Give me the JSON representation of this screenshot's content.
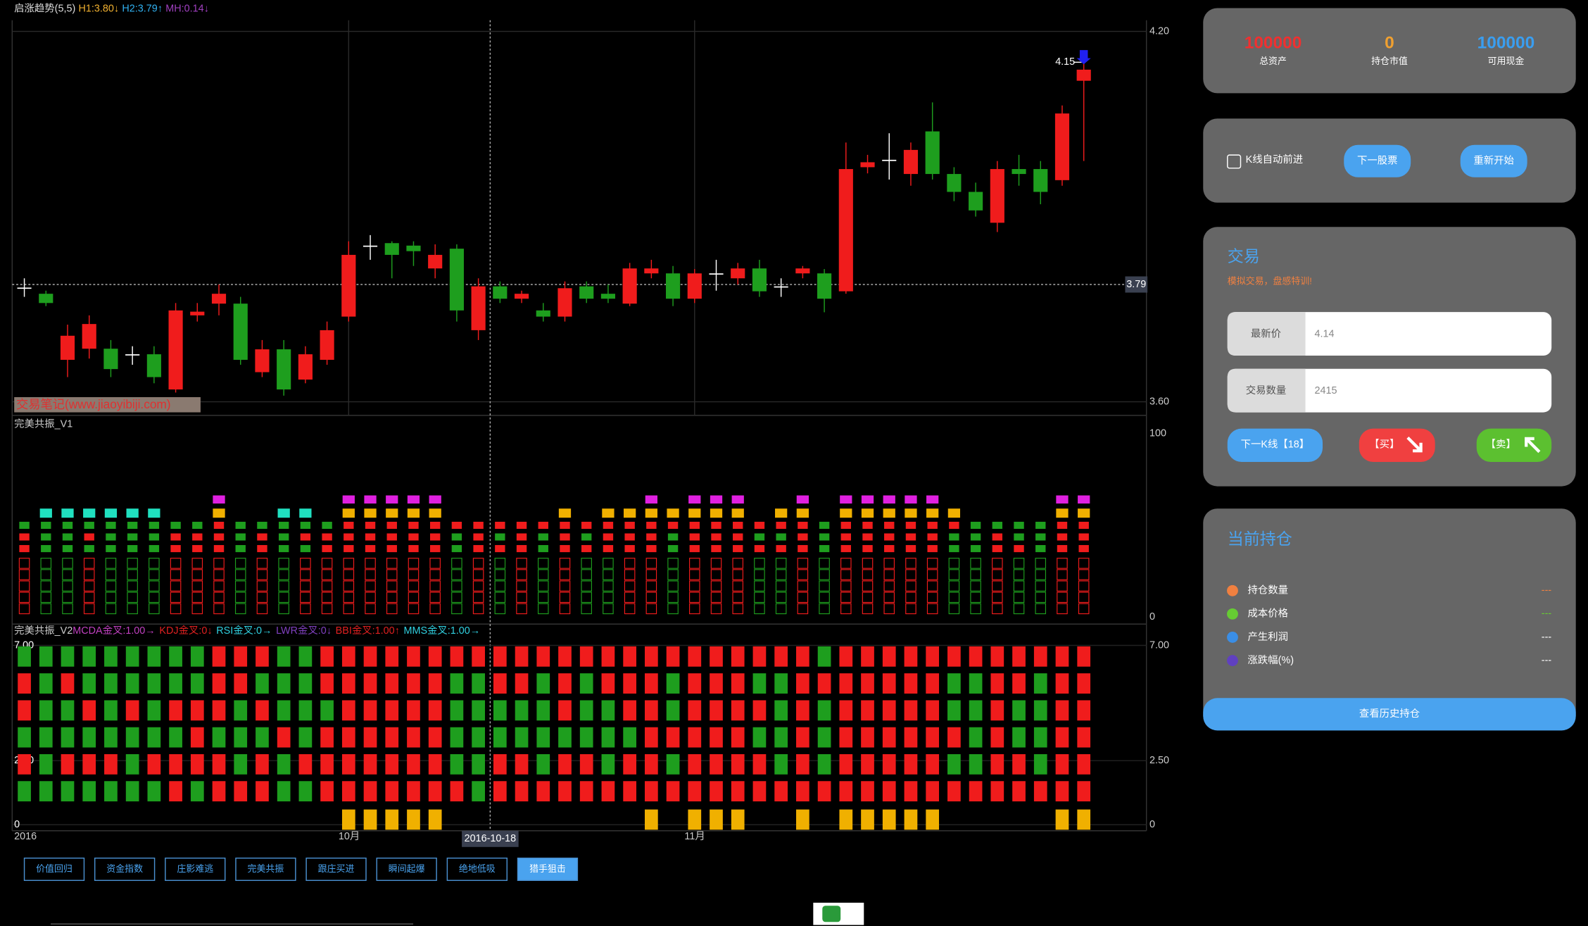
{
  "chart_data": {
    "type": "candlestick",
    "legend": [
      {
        "text": "启涨趋势(5,5)",
        "color": "#dddddd"
      },
      {
        "text": "H1:3.80↓",
        "color": "#f0b030"
      },
      {
        "text": "H2:3.79↑",
        "color": "#30b0f0"
      },
      {
        "text": "MH:0.14↓",
        "color": "#a040c0"
      }
    ],
    "categories": [
      "2016",
      null,
      null,
      null,
      null,
      null,
      null,
      null,
      null,
      null,
      null,
      null,
      null,
      null,
      null,
      "10月",
      null,
      null,
      null,
      null,
      null,
      null,
      null,
      null,
      null,
      null,
      null,
      null,
      null,
      null,
      null,
      "11月",
      null,
      null,
      null,
      null,
      null,
      null,
      null,
      null,
      null,
      null,
      null,
      null,
      null,
      null,
      null,
      null,
      null,
      null
    ],
    "open": [
      3.785,
      3.775,
      3.668,
      3.686,
      3.686,
      3.677,
      3.677,
      3.62,
      3.74,
      3.759,
      3.759,
      3.648,
      3.685,
      3.636,
      3.668,
      3.738,
      3.853,
      3.857,
      3.853,
      3.816,
      3.848,
      3.716,
      3.787,
      3.767,
      3.748,
      3.738,
      3.787,
      3.775,
      3.759,
      3.808,
      3.808,
      3.767,
      3.808,
      3.8,
      3.816,
      3.787,
      3.808,
      3.808,
      3.779,
      3.98,
      3.992,
      3.969,
      4.038,
      3.969,
      3.94,
      3.89,
      3.977,
      3.977,
      3.959,
      4.12
    ],
    "high": [
      3.8,
      3.78,
      3.725,
      3.74,
      3.7,
      3.69,
      3.69,
      3.76,
      3.76,
      3.79,
      3.77,
      3.7,
      3.7,
      3.69,
      3.73,
      3.86,
      3.87,
      3.86,
      3.86,
      3.855,
      3.855,
      3.8,
      3.795,
      3.78,
      3.76,
      3.795,
      3.795,
      3.79,
      3.825,
      3.83,
      3.82,
      3.815,
      3.83,
      3.825,
      3.83,
      3.8,
      3.82,
      3.815,
      4.02,
      4.0,
      4.035,
      4.02,
      4.085,
      3.98,
      3.955,
      3.99,
      4.0,
      3.99,
      4.08,
      4.15
    ],
    "low": [
      3.77,
      3.755,
      3.64,
      3.67,
      3.64,
      3.66,
      3.63,
      3.615,
      3.73,
      3.74,
      3.66,
      3.64,
      3.61,
      3.63,
      3.66,
      3.73,
      3.83,
      3.8,
      3.82,
      3.8,
      3.73,
      3.7,
      3.76,
      3.76,
      3.73,
      3.73,
      3.76,
      3.76,
      3.755,
      3.8,
      3.755,
      3.76,
      3.78,
      3.79,
      3.77,
      3.77,
      3.8,
      3.745,
      3.775,
      3.97,
      3.96,
      3.95,
      3.96,
      3.925,
      3.9,
      3.875,
      3.95,
      3.92,
      3.95,
      3.99
    ],
    "close": [
      3.785,
      3.76,
      3.707,
      3.726,
      3.653,
      3.677,
      3.64,
      3.748,
      3.746,
      3.775,
      3.668,
      3.685,
      3.62,
      3.677,
      3.716,
      3.838,
      3.853,
      3.838,
      3.844,
      3.838,
      3.748,
      3.787,
      3.767,
      3.775,
      3.738,
      3.784,
      3.767,
      3.767,
      3.816,
      3.816,
      3.767,
      3.808,
      3.808,
      3.816,
      3.779,
      3.787,
      3.816,
      3.767,
      3.977,
      3.988,
      3.992,
      4.008,
      3.969,
      3.94,
      3.91,
      3.977,
      3.969,
      3.94,
      4.067,
      4.138
    ],
    "up_color": "#f01c1c",
    "down_color": "#1e9e1e",
    "flat_color": "#ffffff",
    "ylim": [
      3.578,
      4.218
    ],
    "yticks": [
      {
        "value": 3.6,
        "label": "3.60"
      },
      {
        "value": 4.2,
        "label": "4.20"
      }
    ],
    "grid": true,
    "crosshair": {
      "date": "2016-10-18",
      "price": {
        "value": 3.79,
        "label": "3.79"
      }
    },
    "high_marker": {
      "value": 4.15,
      "label": "4.15"
    },
    "watermark": "交易笔记(www.jiaoyibiji.com)"
  },
  "indicator_panels": [
    {
      "title": "完美共振_V1",
      "ylim": [
        0,
        100
      ],
      "yticks": [
        0,
        100
      ],
      "columns": [
        "-GRRR",
        "CGGGG",
        "CGGGG",
        "CGRGR",
        "CGGGG",
        "CGGGG",
        "CGGGG",
        "-GRRR",
        "-GRRR",
        "MRRRR",
        "-GGGG",
        "-GRRR",
        "CGGGG",
        "CGRGR",
        "-GRRR",
        "MRRRR",
        "MRRRR",
        "MRRRR",
        "MRRRR",
        "MRRRR",
        "-RGGG",
        "-RRRR",
        "-RGRG",
        "-RRRR",
        "-RGGG",
        "YRRRR",
        "-RGRG",
        "YRRRG",
        "YRRRR",
        "MRRRR",
        "YRGGG",
        "MRRRR",
        "MRRRR",
        "MRRRR",
        "-RGRG",
        "YRGRG",
        "MRRRR",
        "-GGGG",
        "MRRRR",
        "MRRRR",
        "MRRRR",
        "MRRRR",
        "MRRRR",
        "YRGGG",
        "-GGGG",
        "-GRRR",
        "-GGRG",
        "-GGGG",
        "MRRRR",
        "MRRRR"
      ]
    },
    {
      "title": "完美共振_V2",
      "items": [
        {
          "text": "MCDA金叉:1.00→",
          "color": "#c040c0"
        },
        {
          "text": "KDJ金叉:0↓",
          "color": "#e02020"
        },
        {
          "text": "RSI金叉:0→",
          "color": "#30d0e0"
        },
        {
          "text": "LWR金叉:0↓",
          "color": "#8040c0"
        },
        {
          "text": "BBI金叉:1.00↑",
          "color": "#e02020"
        },
        {
          "text": "MMS金叉:1.00→",
          "color": "#30d0e0"
        }
      ],
      "ylim": [
        0,
        7
      ],
      "yticks": [
        0,
        {
          "value": 2.5,
          "label": "2.50"
        },
        {
          "value": 7,
          "label": "7.00"
        }
      ],
      "columns": [
        "GRRGRG-",
        "GGGGGG-",
        "GRGGRG-",
        "GGRGRG-",
        "GGGGRG-",
        "GGRGGG-",
        "GGGGRG-",
        "GGRGRR-",
        "GGRRRG-",
        "RRRGRR-",
        "RRGGGR-",
        "RGRGRR-",
        "GGGRGG-",
        "GGGGRG-",
        "RRGRRR-",
        "RRRRRRY",
        "RRRRRRY",
        "RRRRRRY",
        "RRRRRRY",
        "RRRRRRY",
        "RGGGGR-",
        "RGGGGG-",
        "RRGGRR-",
        "RRGGRR-",
        "RGGGGR-",
        "RRRGRR-",
        "RGGGRR-",
        "RRGGGR-",
        "RRRGRR-",
        "RRRRRRY",
        "RGGRGR-",
        "RRRRRRY",
        "RRRRRRY",
        "RRRRRRY",
        "RGRGRR-",
        "RGGGGR-",
        "RRRRRRY",
        "GRGGGR-",
        "RRRRRRY",
        "RRRRRRY",
        "RRRRRRY",
        "RRRRRRY",
        "RRRRRRY",
        "RGGRGR-",
        "RGGGGR-",
        "RRRRRR-",
        "RRGGRR-",
        "RGGGGR-",
        "RRRRRRY",
        "RRRRRRY"
      ]
    }
  ],
  "tabs": {
    "items": [
      "价值回归",
      "资金指数",
      "庄影难逃",
      "完美共振",
      "跟庄买进",
      "瞬间起爆",
      "绝地低吸",
      "猎手狙击"
    ],
    "active": 7
  },
  "account": [
    {
      "value": "100000",
      "label": "总资产",
      "color": "#f03030"
    },
    {
      "value": "0",
      "label": "持仓市值",
      "color": "#f0a030"
    },
    {
      "value": "100000",
      "label": "可用现金",
      "color": "#3a9ef0"
    }
  ],
  "controls": {
    "auto_advance": "K线自动前进",
    "buttons": [
      "下一股票",
      "重新开始"
    ]
  },
  "trade": {
    "title": "交易",
    "subtitle": "模拟交易，盘感特训!",
    "fields": [
      {
        "label": "最新价",
        "value": "4.14"
      },
      {
        "label": "交易数量",
        "value": "2415"
      }
    ],
    "next": "下一K线【18】",
    "buy": "【买】",
    "sell": "【卖】"
  },
  "position": {
    "title": "当前持仓",
    "rows": [
      {
        "label": "持仓数量",
        "value": "---",
        "dot": "#f08040",
        "color": "#f08040"
      },
      {
        "label": "成本价格",
        "value": "---",
        "dot": "#66cc33",
        "color": "#66cc33"
      },
      {
        "label": "产生利润",
        "value": "---",
        "dot": "#3a8ee6",
        "color": "#ffffff"
      },
      {
        "label": "涨跌幅(%)",
        "value": "---",
        "dot": "#6040c0",
        "color": "#ffffff"
      }
    ],
    "button": "查看历史持仓"
  }
}
